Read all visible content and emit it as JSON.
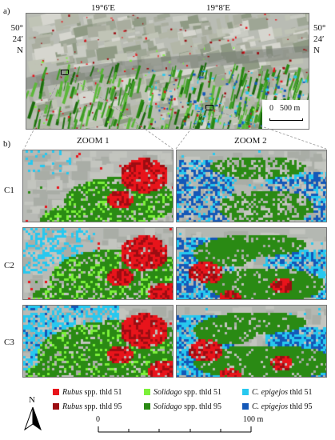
{
  "panel_a_label": "a)",
  "panel_b_label": "b)",
  "coords": {
    "lon_1": "19°6′E",
    "lon_2": "19°8′E",
    "lat_left": [
      "50°",
      "24′",
      "N"
    ],
    "lat_right": [
      "50°",
      "24′",
      "N"
    ]
  },
  "overview_scale": {
    "zero": "0",
    "value": "500 m"
  },
  "zoom_headers": [
    "ZOOM 1",
    "ZOOM 2"
  ],
  "row_labels": [
    "C1",
    "C2",
    "C3"
  ],
  "legend": [
    {
      "italic": "Rubus",
      "rest": " spp. thld 51",
      "color": "#e8141b"
    },
    {
      "italic": "Solidago",
      "rest": " spp. thld 51",
      "color": "#7cf03a"
    },
    {
      "italic": "C. epigejos",
      "rest": " thld 51",
      "color": "#27c8ef"
    },
    {
      "italic": "Rubus",
      "rest": " spp. thld 95",
      "color": "#9c0d12"
    },
    {
      "italic": "Solidago",
      "rest": " spp. thld 95",
      "color": "#2a8a14"
    },
    {
      "italic": "C. epigejos",
      "rest": " thld 95",
      "color": "#1458b8"
    }
  ],
  "north_label": "N",
  "bottom_scale": {
    "zero": "0",
    "value": "100 m"
  }
}
